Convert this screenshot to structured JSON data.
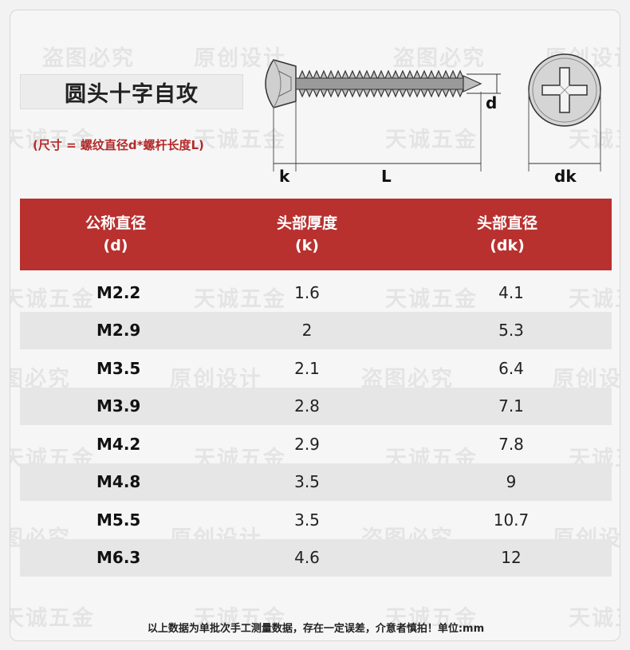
{
  "title": "圆头十字自攻",
  "size_note": "(尺寸 = 螺纹直径d*螺杆长度L)",
  "diagram": {
    "label_d": "d",
    "label_k": "k",
    "label_L": "L",
    "label_dk": "dk"
  },
  "table": {
    "headers": [
      {
        "name": "公称直径",
        "symbol": "(d)"
      },
      {
        "name": "头部厚度",
        "symbol": "(k)"
      },
      {
        "name": "头部直径",
        "symbol": "(dk)"
      }
    ],
    "rows": [
      {
        "d": "M2.2",
        "k": "1.6",
        "dk": "4.1"
      },
      {
        "d": "M2.9",
        "k": "2",
        "dk": "5.3"
      },
      {
        "d": "M3.5",
        "k": "2.1",
        "dk": "6.4"
      },
      {
        "d": "M3.9",
        "k": "2.8",
        "dk": "7.1"
      },
      {
        "d": "M4.2",
        "k": "2.9",
        "dk": "7.8"
      },
      {
        "d": "M4.8",
        "k": "3.5",
        "dk": "9"
      },
      {
        "d": "M5.5",
        "k": "3.5",
        "dk": "10.7"
      },
      {
        "d": "M6.3",
        "k": "4.6",
        "dk": "12"
      }
    ]
  },
  "footnote": "以上数据为单批次手工测量数据，存在一定误差，介意者慎拍！单位:mm",
  "watermarks": [
    "盗图必究",
    "原创设计",
    "天诚五金"
  ],
  "colors": {
    "header_bg": "#b8312f",
    "note_red": "#b32a2a",
    "alt_row": "#e6e6e6"
  }
}
